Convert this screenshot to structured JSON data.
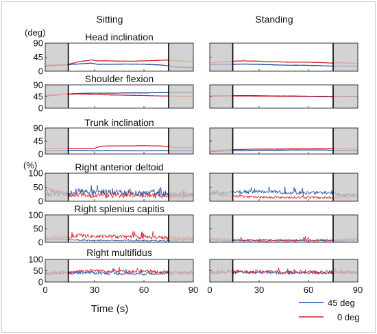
{
  "column_titles": [
    "Sitting",
    "Standing"
  ],
  "unit_labels": {
    "angle": "(deg)",
    "percent": "(%)"
  },
  "x_axis": {
    "label": "Time (s)",
    "ticks": [
      "0",
      "30",
      "60",
      "90"
    ],
    "tick_values": [
      0,
      30,
      60,
      90
    ],
    "range": [
      0,
      90
    ]
  },
  "legend": [
    {
      "label": "45 deg",
      "color": "#1f4e9e"
    },
    {
      "label": "0 deg",
      "color": "#d81f26"
    }
  ],
  "colors": {
    "series_45": "#1f4e9e",
    "series_0": "#d81f26",
    "series_45_faded": "#9aa3c9",
    "series_0_faded": "#e0a898",
    "shaded_region": "#d3d3d3"
  },
  "rows": [
    {
      "title": "Head inclination",
      "unit": "deg",
      "yticks": [
        "90",
        "45",
        "0"
      ],
      "ytick_values": [
        90,
        45,
        0
      ]
    },
    {
      "title": "Shoulder flexion",
      "unit": "deg",
      "yticks": [
        "90",
        "45",
        "0"
      ],
      "ytick_values": [
        90,
        45,
        0
      ]
    },
    {
      "title": "Trunk inclination",
      "unit": "deg",
      "yticks": [
        "90",
        "45",
        "0"
      ],
      "ytick_values": [
        90,
        45,
        0
      ]
    },
    {
      "title": "Right anterior deltoid",
      "unit": "%",
      "yticks": [
        "100",
        "50",
        "0"
      ],
      "ytick_values": [
        100,
        50,
        0
      ]
    },
    {
      "title": "Right splenius capitis",
      "unit": "%",
      "yticks": [
        "100",
        "50",
        "0"
      ],
      "ytick_values": [
        100,
        50,
        0
      ]
    },
    {
      "title": "Right multifidus",
      "unit": "%",
      "yticks": [
        "100",
        "50",
        "0"
      ],
      "ytick_values": [
        100,
        50,
        0
      ]
    }
  ],
  "chart_data": {
    "type": "line",
    "xlabel": "Time (s)",
    "xlim": [
      0,
      90
    ],
    "shaded_x_ranges": [
      [
        0,
        14
      ],
      [
        75,
        90
      ]
    ],
    "event_markers_x": [
      14,
      75
    ],
    "series_names": [
      "45 deg",
      "0 deg"
    ],
    "panels": [
      {
        "row": "Head inclination",
        "column": "Sitting",
        "ylim": [
          0,
          90
        ],
        "series": [
          {
            "name": "45 deg",
            "kind": "smooth",
            "x": [
              0,
              14,
              20,
              28,
              32,
              40,
              50,
              60,
              70,
              75,
              80,
              90
            ],
            "y": [
              16,
              21,
              23,
              26,
              22,
              22,
              23,
              22,
              20,
              17,
              13,
              12
            ]
          },
          {
            "name": "0 deg",
            "kind": "smooth",
            "x": [
              0,
              14,
              20,
              28,
              32,
              40,
              50,
              60,
              70,
              75,
              80,
              90
            ],
            "y": [
              19,
              22,
              30,
              36,
              33,
              33,
              32,
              33,
              35,
              36,
              33,
              30
            ]
          }
        ]
      },
      {
        "row": "Head inclination",
        "column": "Standing",
        "ylim": [
          0,
          90
        ],
        "series": [
          {
            "name": "45 deg",
            "kind": "smooth",
            "x": [
              0,
              14,
              20,
              30,
              40,
              50,
              60,
              70,
              75,
              80,
              90
            ],
            "y": [
              22,
              22,
              23,
              22,
              20,
              19,
              19,
              17,
              16,
              17,
              16
            ]
          },
          {
            "name": "0 deg",
            "kind": "smooth",
            "x": [
              0,
              14,
              20,
              30,
              40,
              50,
              60,
              70,
              75,
              80,
              90
            ],
            "y": [
              28,
              32,
              33,
              32,
              30,
              29,
              29,
              27,
              26,
              27,
              25
            ]
          }
        ]
      },
      {
        "row": "Shoulder flexion",
        "column": "Sitting",
        "ylim": [
          0,
          90
        ],
        "series": [
          {
            "name": "45 deg",
            "kind": "smooth",
            "x": [
              0,
              14,
              20,
              30,
              40,
              50,
              60,
              70,
              75,
              80,
              90
            ],
            "y": [
              47,
              55,
              57,
              58,
              58,
              59,
              59,
              60,
              60,
              61,
              62
            ]
          },
          {
            "name": "0 deg",
            "kind": "smooth",
            "x": [
              0,
              14,
              20,
              30,
              40,
              50,
              60,
              70,
              75,
              80,
              90
            ],
            "y": [
              50,
              54,
              55,
              53,
              51,
              50,
              49,
              47,
              47,
              46,
              46
            ]
          }
        ]
      },
      {
        "row": "Shoulder flexion",
        "column": "Standing",
        "ylim": [
          0,
          90
        ],
        "series": [
          {
            "name": "45 deg",
            "kind": "smooth",
            "x": [
              0,
              14,
              20,
              30,
              40,
              50,
              60,
              70,
              75,
              80,
              90
            ],
            "y": [
              47,
              48,
              49,
              48,
              47,
              47,
              46,
              46,
              45,
              46,
              46
            ]
          },
          {
            "name": "0 deg",
            "kind": "smooth",
            "x": [
              0,
              14,
              20,
              30,
              40,
              50,
              60,
              70,
              75,
              80,
              90
            ],
            "y": [
              45,
              47,
              47,
              46,
              46,
              45,
              45,
              44,
              44,
              44,
              44
            ]
          }
        ]
      },
      {
        "row": "Trunk inclination",
        "column": "Sitting",
        "ylim": [
          0,
          90
        ],
        "series": [
          {
            "name": "45 deg",
            "kind": "smooth",
            "x": [
              0,
              14,
              20,
              30,
              40,
              50,
              60,
              70,
              75,
              80,
              90
            ],
            "y": [
              11,
              12,
              12,
              11,
              12,
              11,
              11,
              12,
              12,
              12,
              12
            ]
          },
          {
            "name": "0 deg",
            "kind": "smooth",
            "x": [
              0,
              14,
              20,
              30,
              34,
              40,
              50,
              60,
              70,
              75,
              80,
              90
            ],
            "y": [
              20,
              19,
              18,
              20,
              27,
              28,
              28,
              29,
              28,
              25,
              22,
              22
            ]
          }
        ]
      },
      {
        "row": "Trunk inclination",
        "column": "Standing",
        "ylim": [
          0,
          90
        ],
        "series": [
          {
            "name": "45 deg",
            "kind": "smooth",
            "x": [
              0,
              14,
              20,
              30,
              40,
              50,
              60,
              70,
              75,
              80,
              90
            ],
            "y": [
              8,
              12,
              12,
              13,
              13,
              14,
              14,
              14,
              13,
              12,
              12
            ]
          },
          {
            "name": "0 deg",
            "kind": "smooth",
            "x": [
              0,
              14,
              20,
              30,
              40,
              50,
              60,
              70,
              75,
              80,
              90
            ],
            "y": [
              12,
              15,
              16,
              17,
              17,
              18,
              18,
              19,
              18,
              18,
              17
            ]
          }
        ]
      },
      {
        "row": "Right anterior deltoid",
        "column": "Sitting",
        "ylim": [
          0,
          100
        ],
        "series": [
          {
            "name": "45 deg",
            "kind": "noisy",
            "x": [
              0,
              14,
              20,
              30,
              40,
              50,
              60,
              70,
              75,
              80,
              90
            ],
            "y": [
              25,
              25,
              35,
              30,
              32,
              28,
              27,
              27,
              22,
              20,
              18
            ],
            "amp": 22
          },
          {
            "name": "0 deg",
            "kind": "noisy",
            "x": [
              0,
              14,
              20,
              30,
              40,
              50,
              60,
              70,
              75,
              80,
              90
            ],
            "y": [
              45,
              20,
              22,
              18,
              18,
              20,
              20,
              18,
              18,
              20,
              22
            ],
            "amp": 16
          }
        ]
      },
      {
        "row": "Right anterior deltoid",
        "column": "Standing",
        "ylim": [
          0,
          100
        ],
        "series": [
          {
            "name": "45 deg",
            "kind": "noisy",
            "x": [
              0,
              14,
              20,
              30,
              40,
              50,
              60,
              70,
              75,
              80,
              90
            ],
            "y": [
              30,
              30,
              32,
              35,
              33,
              30,
              29,
              30,
              28,
              22,
              22
            ],
            "amp": 12
          },
          {
            "name": "0 deg",
            "kind": "noisy",
            "x": [
              0,
              14,
              20,
              30,
              40,
              50,
              60,
              70,
              75,
              80,
              90
            ],
            "y": [
              25,
              18,
              16,
              14,
              13,
              13,
              13,
              12,
              12,
              14,
              16
            ],
            "amp": 8
          }
        ]
      },
      {
        "row": "Right splenius capitis",
        "column": "Sitting",
        "ylim": [
          0,
          100
        ],
        "series": [
          {
            "name": "45 deg",
            "kind": "noisy",
            "x": [
              0,
              14,
              20,
              30,
              40,
              50,
              60,
              70,
              75,
              80,
              90
            ],
            "y": [
              12,
              10,
              8,
              6,
              6,
              6,
              6,
              5,
              5,
              8,
              10
            ],
            "amp": 5
          },
          {
            "name": "0 deg",
            "kind": "noisy",
            "x": [
              0,
              14,
              20,
              30,
              40,
              50,
              60,
              70,
              75,
              80,
              90
            ],
            "y": [
              15,
              18,
              25,
              20,
              20,
              18,
              18,
              17,
              15,
              14,
              15
            ],
            "amp": 14
          }
        ]
      },
      {
        "row": "Right splenius capitis",
        "column": "Standing",
        "ylim": [
          0,
          100
        ],
        "series": [
          {
            "name": "45 deg",
            "kind": "noisy",
            "x": [
              0,
              14,
              20,
              30,
              40,
              50,
              60,
              70,
              75,
              80,
              90
            ],
            "y": [
              8,
              6,
              5,
              5,
              5,
              5,
              5,
              5,
              5,
              6,
              8
            ],
            "amp": 4
          },
          {
            "name": "0 deg",
            "kind": "noisy",
            "x": [
              0,
              14,
              20,
              30,
              40,
              50,
              60,
              70,
              75,
              80,
              90
            ],
            "y": [
              12,
              10,
              8,
              8,
              8,
              8,
              8,
              8,
              8,
              10,
              12
            ],
            "amp": 8
          }
        ]
      },
      {
        "row": "Right multifidus",
        "column": "Sitting",
        "ylim": [
          0,
          100
        ],
        "series": [
          {
            "name": "45 deg",
            "kind": "noisy",
            "x": [
              0,
              14,
              20,
              30,
              40,
              50,
              60,
              70,
              75,
              80,
              90
            ],
            "y": [
              35,
              38,
              42,
              40,
              38,
              36,
              36,
              38,
              38,
              40,
              38
            ],
            "amp": 14
          },
          {
            "name": "0 deg",
            "kind": "noisy",
            "x": [
              0,
              14,
              20,
              30,
              40,
              50,
              60,
              70,
              75,
              80,
              90
            ],
            "y": [
              40,
              42,
              48,
              50,
              48,
              46,
              45,
              44,
              44,
              42,
              40
            ],
            "amp": 14
          }
        ]
      },
      {
        "row": "Right multifidus",
        "column": "Standing",
        "ylim": [
          0,
          100
        ],
        "series": [
          {
            "name": "45 deg",
            "kind": "noisy",
            "x": [
              0,
              14,
              20,
              30,
              40,
              50,
              60,
              70,
              75,
              80,
              90
            ],
            "y": [
              40,
              42,
              42,
              42,
              40,
              40,
              40,
              40,
              40,
              42,
              42
            ],
            "amp": 14
          },
          {
            "name": "0 deg",
            "kind": "noisy",
            "x": [
              0,
              14,
              20,
              30,
              40,
              50,
              60,
              70,
              75,
              80,
              90
            ],
            "y": [
              42,
              45,
              45,
              45,
              44,
              44,
              44,
              43,
              43,
              42,
              42
            ],
            "amp": 14
          }
        ]
      }
    ]
  }
}
